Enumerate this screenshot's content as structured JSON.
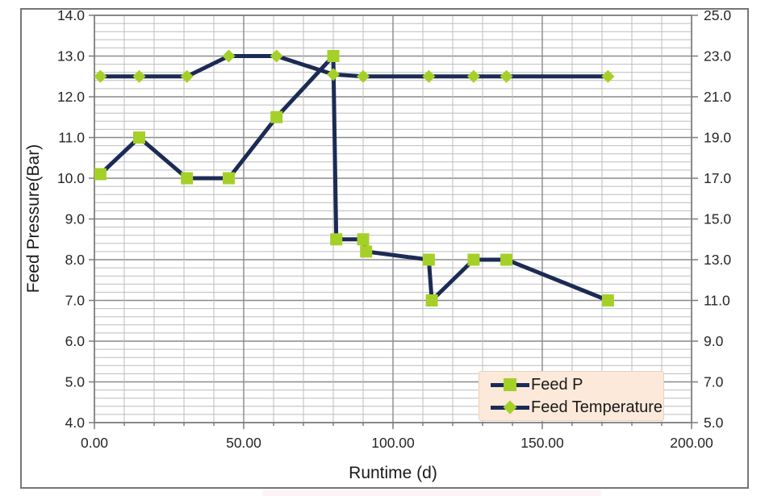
{
  "chart_data": {
    "type": "line",
    "title": "",
    "xlabel": "Runtime (d)",
    "ylabel_left": "Feed Pressure(Bar)",
    "grid": "both-minor-and-major",
    "legend_position": "bottom-right-inside",
    "x_axis": {
      "min": 0,
      "max": 200,
      "major_step": 50,
      "minor_step": 10,
      "tick_labels": [
        "0.00",
        "50.00",
        "100.00",
        "150.00",
        "200.00"
      ]
    },
    "y_axis_left": {
      "min": 4.0,
      "max": 14.0,
      "major_step": 1.0,
      "minor_step": 0.2,
      "tick_labels": [
        "14.0",
        "13.0",
        "12.0",
        "11.0",
        "10.0",
        "9.0",
        "8.0",
        "7.0",
        "6.0",
        "5.0",
        "4.0"
      ]
    },
    "y_axis_right": {
      "min": 5.0,
      "max": 25.0,
      "major_step": 2.0,
      "tick_labels": [
        "25.0",
        "23.0",
        "21.0",
        "19.0",
        "17.0",
        "15.0",
        "13.0",
        "11.0",
        "9.0",
        "7.0",
        "5.0"
      ]
    },
    "series": [
      {
        "name": "Feed P",
        "axis": "left",
        "marker": "square",
        "x": [
          2,
          15,
          31,
          45,
          61,
          80,
          81,
          90,
          91,
          112,
          113,
          127,
          138,
          172
        ],
        "y": [
          10.1,
          11.0,
          10.0,
          10.0,
          11.5,
          13.0,
          8.5,
          8.5,
          8.2,
          8.0,
          7.0,
          8.0,
          8.0,
          7.0
        ]
      },
      {
        "name": "Feed Temperature",
        "axis": "right",
        "marker": "diamond",
        "x": [
          2,
          15,
          31,
          45,
          61,
          80,
          90,
          112,
          127,
          138,
          172
        ],
        "y": [
          22.0,
          22.0,
          22.0,
          23.0,
          23.0,
          22.1,
          22.0,
          22.0,
          22.0,
          22.0,
          22.0
        ]
      }
    ],
    "colors": {
      "line": "#1c2b55",
      "marker": "#a5d028",
      "grid_minor": "#bdbdbd",
      "grid_major": "#8a8a8a",
      "axis": "#7a7a7a",
      "text": "#262626",
      "legend_bg": "#fce9d9"
    }
  }
}
